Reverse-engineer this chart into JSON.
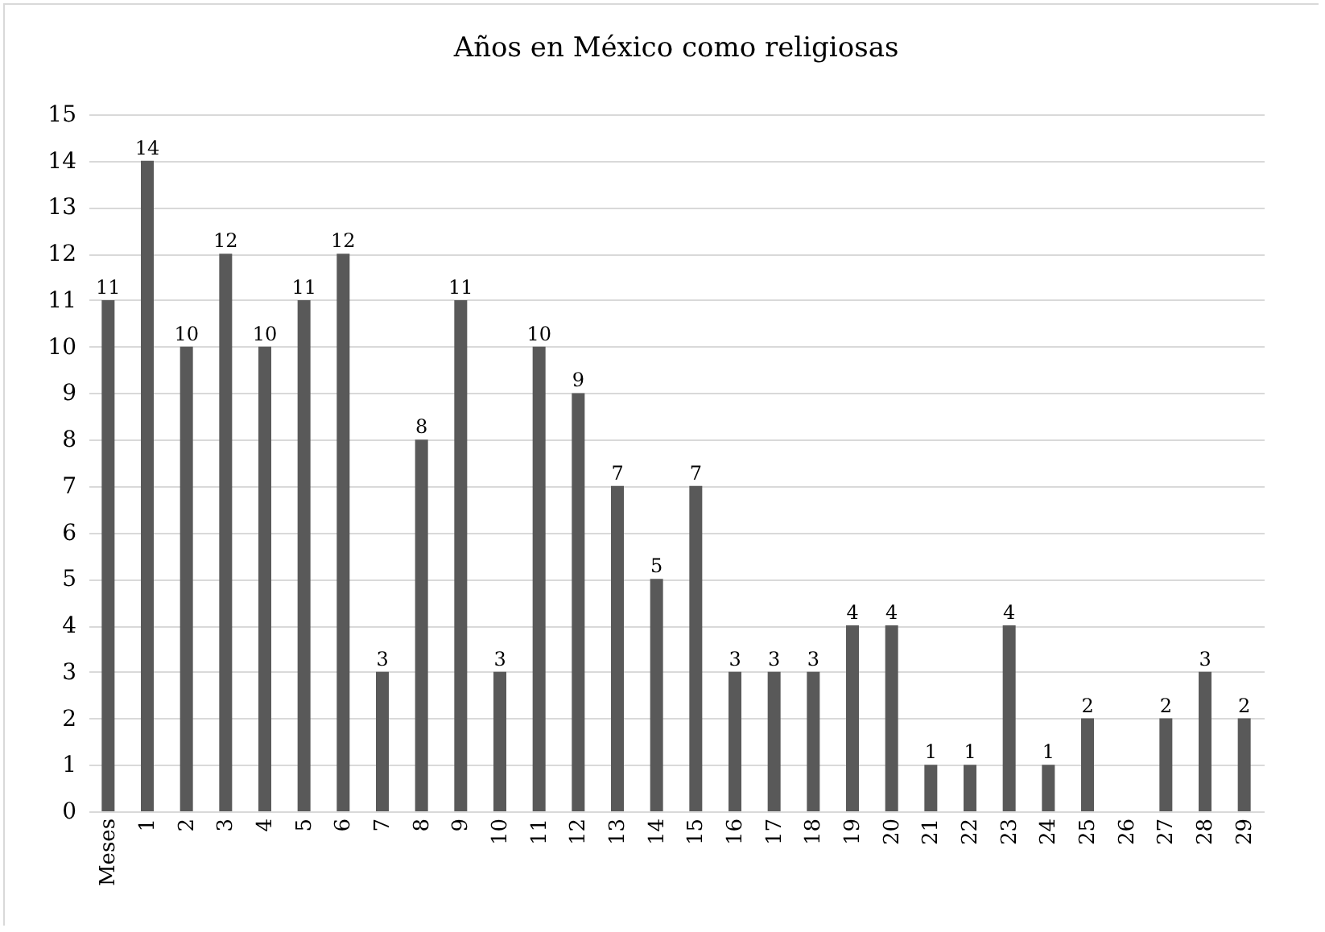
{
  "chart_data": {
    "type": "bar",
    "title": "Años en México como religiosas",
    "categories": [
      "Meses",
      "1",
      "2",
      "3",
      "4",
      "5",
      "6",
      "7",
      "8",
      "9",
      "10",
      "11",
      "12",
      "13",
      "14",
      "15",
      "16",
      "17",
      "18",
      "19",
      "20",
      "21",
      "22",
      "23",
      "24",
      "25",
      "26",
      "27",
      "28",
      "29"
    ],
    "values": [
      11,
      14,
      10,
      12,
      10,
      11,
      12,
      3,
      8,
      11,
      3,
      10,
      9,
      7,
      5,
      7,
      3,
      3,
      3,
      4,
      4,
      1,
      1,
      4,
      1,
      2,
      null,
      2,
      3,
      2
    ],
    "color": "#595959",
    "ylim": [
      0,
      15
    ],
    "yticks": [
      0,
      1,
      2,
      3,
      4,
      5,
      6,
      7,
      8,
      9,
      10,
      11,
      12,
      13,
      14,
      15
    ],
    "grid": "y",
    "data_labels": true
  }
}
